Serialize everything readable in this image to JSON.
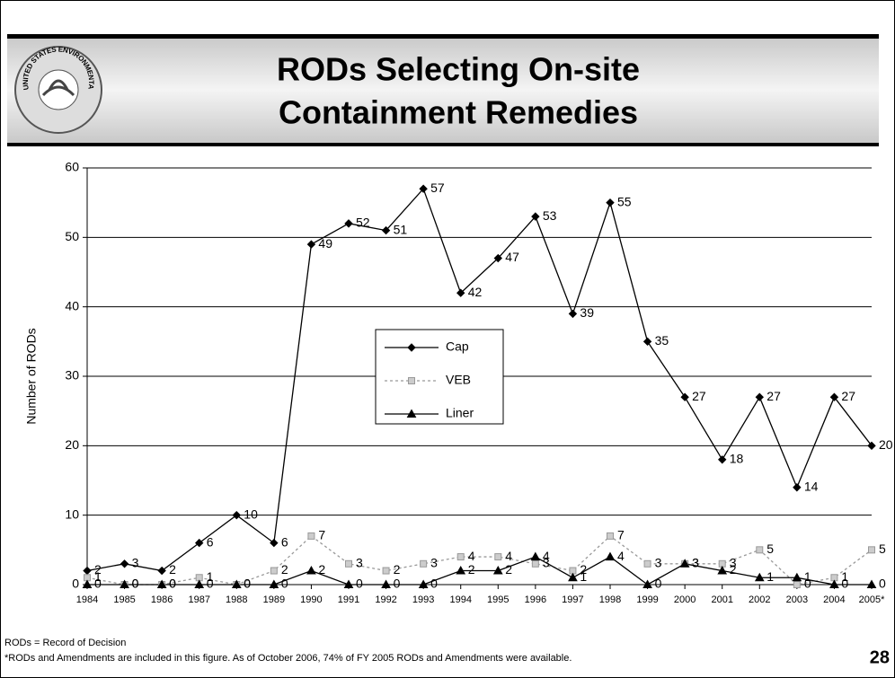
{
  "header": {
    "title_lines": [
      "RODs Selecting On-site",
      "Containment Remedies"
    ],
    "logo_text": "UNITED STATES ENVIRONMENTAL PROTECTION AGENCY"
  },
  "chart_data": {
    "type": "line",
    "y_label": "Number of RODs",
    "categories": [
      "1984",
      "1985",
      "1986",
      "1987",
      "1988",
      "1989",
      "1990",
      "1991",
      "1992",
      "1993",
      "1994",
      "1995",
      "1996",
      "1997",
      "1998",
      "1999",
      "2000",
      "2001",
      "2002",
      "2003",
      "2004",
      "2005*"
    ],
    "series": [
      {
        "name": "Cap",
        "color": "#000000",
        "marker": "diamond",
        "dash": false,
        "values": [
          2,
          3,
          2,
          6,
          10,
          6,
          49,
          52,
          51,
          57,
          42,
          47,
          53,
          39,
          55,
          35,
          27,
          18,
          27,
          14,
          27,
          20
        ]
      },
      {
        "name": "VEB",
        "color": "#999999",
        "marker": "square",
        "dash": true,
        "values": [
          1,
          0,
          0,
          1,
          0,
          2,
          7,
          3,
          2,
          3,
          4,
          4,
          3,
          2,
          7,
          3,
          3,
          3,
          5,
          0,
          1,
          5
        ]
      },
      {
        "name": "Liner",
        "color": "#000000",
        "marker": "triangle",
        "dash": false,
        "values": [
          0,
          0,
          0,
          0,
          0,
          0,
          2,
          0,
          0,
          0,
          2,
          2,
          4,
          1,
          4,
          0,
          3,
          2,
          1,
          1,
          0,
          0
        ]
      }
    ],
    "ylim": [
      0,
      60
    ],
    "yticks": [
      0,
      10,
      20,
      30,
      40,
      50,
      60
    ],
    "grid": true,
    "legend": "center"
  },
  "footnotes": [
    "RODs = Record of Decision",
    "*RODs and Amendments are included in this figure.  As of October 2006, 74% of FY 2005 RODs and Amendments were available."
  ],
  "page_number": "28"
}
